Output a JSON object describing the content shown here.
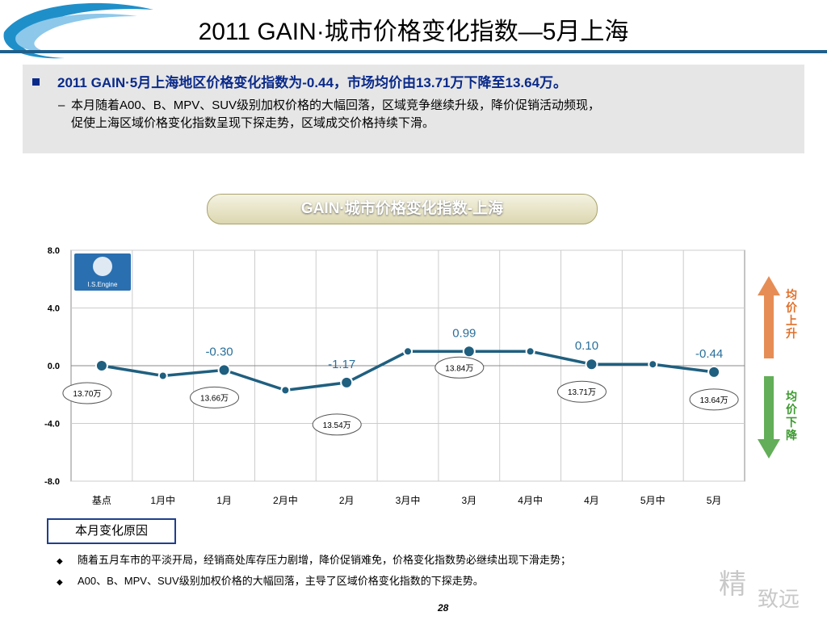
{
  "header": {
    "title": "2011 GAIN·城市价格变化指数—5月上海"
  },
  "summary": {
    "headline": "2011 GAIN·5月上海地区价格变化指数为-0.44，市场均价由13.71万下降至13.64万。",
    "detail_line1": "本月随着A00、B、MPV、SUV级别加权价格的大幅回落，区域竞争继续升级，降价促销活动频现，",
    "detail_line2": "促使上海区域价格变化指数呈现下探走势，区域成交价格持续下滑。"
  },
  "chart_data": {
    "type": "line",
    "title": "GAIN·城市价格变化指数-上海",
    "categories": [
      "基点",
      "1月中",
      "1月",
      "2月中",
      "2月",
      "3月中",
      "3月",
      "4月中",
      "4月",
      "5月中",
      "5月"
    ],
    "series": [
      {
        "values": [
          0.0,
          -0.7,
          -0.3,
          -1.7,
          -1.17,
          0.99,
          0.99,
          0.99,
          0.1,
          0.1,
          -0.44
        ],
        "color": "#1f5f7f"
      }
    ],
    "value_labels": [
      {
        "index": 2,
        "text": "-0.30"
      },
      {
        "index": 4,
        "text": "-1.17"
      },
      {
        "index": 6,
        "text": "0.99"
      },
      {
        "index": 8,
        "text": "0.10"
      },
      {
        "index": 10,
        "text": "-0.44"
      }
    ],
    "price_bubbles": [
      {
        "index": 0,
        "text": "13.70万",
        "pos": "below"
      },
      {
        "index": 2,
        "text": "13.66万",
        "pos": "below"
      },
      {
        "index": 4,
        "text": "13.54万",
        "pos": "below"
      },
      {
        "index": 6,
        "text": "13.84万",
        "pos": "below"
      },
      {
        "index": 8,
        "text": "13.71万",
        "pos": "below"
      },
      {
        "index": 10,
        "text": "13.64万",
        "pos": "below"
      }
    ],
    "yticks": [
      "8.0",
      "4.0",
      "0.0",
      "-4.0",
      "-8.0"
    ],
    "ylim": [
      -8,
      8
    ],
    "grid": true,
    "logo_text": "I.S.Engine",
    "arrow_up": {
      "text": "均价上升",
      "color": "#e0702a"
    },
    "arrow_down": {
      "text": "均价下降",
      "color": "#3c9a2e"
    }
  },
  "reasons": {
    "box_label": "本月变化原因",
    "items": [
      "随着五月车市的平淡开局，经销商处库存压力剧增，降价促销难免，价格变化指数势必继续出现下滑走势；",
      "A00、B、MPV、SUV级别加权价格的大幅回落，主导了区域价格变化指数的下探走势。"
    ]
  },
  "footer": {
    "page_number": "28",
    "watermark_1": "精",
    "watermark_2": "致远"
  }
}
